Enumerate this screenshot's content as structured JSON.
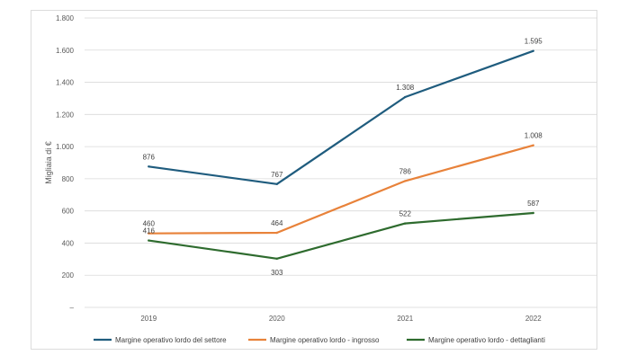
{
  "chart_data": {
    "type": "line",
    "title": "",
    "xlabel": "",
    "ylabel": "Migliaia di €",
    "ylim": [
      0,
      1800
    ],
    "y_ticks": [
      {
        "value": 0,
        "label": "–"
      },
      {
        "value": 200,
        "label": "200"
      },
      {
        "value": 400,
        "label": "400"
      },
      {
        "value": 600,
        "label": "600"
      },
      {
        "value": 800,
        "label": "800"
      },
      {
        "value": 1000,
        "label": "1.000"
      },
      {
        "value": 1200,
        "label": "1.200"
      },
      {
        "value": 1400,
        "label": "1.400"
      },
      {
        "value": 1600,
        "label": "1.600"
      },
      {
        "value": 1800,
        "label": "1.800"
      }
    ],
    "grid": true,
    "legend_position": "bottom",
    "categories": [
      "2019",
      "2020",
      "2021",
      "2022"
    ],
    "series": [
      {
        "name": "Margine operativo lordo del settore",
        "color": "#1f5c7e",
        "values": [
          876,
          767,
          1308,
          1595
        ],
        "labels": [
          "876",
          "767",
          "1.308",
          "1.595"
        ]
      },
      {
        "name": "Margine operativo lordo - ingrosso",
        "color": "#e8823a",
        "values": [
          460,
          464,
          786,
          1008
        ],
        "labels": [
          "460",
          "464",
          "786",
          "1.008"
        ]
      },
      {
        "name": "Margine operativo lordo - dettaglianti",
        "color": "#2e6b2e",
        "values": [
          416,
          303,
          522,
          587
        ],
        "labels": [
          "416",
          "303",
          "522",
          "587"
        ]
      }
    ]
  }
}
